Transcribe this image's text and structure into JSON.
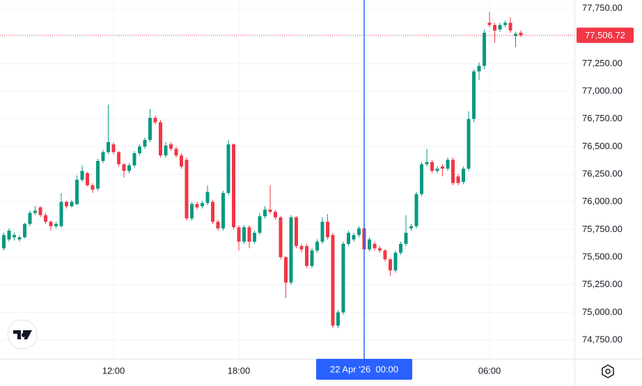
{
  "chart_data": {
    "type": "candlestick",
    "categories": [
      null,
      null,
      null,
      null,
      null,
      null,
      null,
      null,
      null,
      null,
      null,
      null,
      null,
      null,
      null,
      null,
      null,
      null,
      null,
      null,
      null,
      "12:00",
      null,
      null,
      null,
      null,
      null,
      null,
      null,
      null,
      null,
      null,
      null,
      null,
      null,
      null,
      null,
      null,
      null,
      null,
      null,
      null,
      null,
      null,
      null,
      "18:00",
      null,
      null,
      null,
      null,
      null,
      null,
      null,
      null,
      null,
      null,
      null,
      null,
      null,
      null,
      null,
      null,
      null,
      null,
      null,
      null,
      null,
      null,
      null,
      "22 Apr '26  00:00",
      null,
      null,
      null,
      null,
      null,
      null,
      null,
      null,
      null,
      null,
      null,
      null,
      null,
      null,
      null,
      null,
      null,
      null,
      null,
      null,
      null,
      null,
      null,
      "06:00",
      null,
      null,
      null,
      null,
      null,
      null
    ],
    "open": [
      75580,
      75660,
      75680,
      75660,
      75680,
      75800,
      75900,
      75950,
      75880,
      75820,
      75780,
      75780,
      76000,
      75960,
      75980,
      76200,
      76260,
      76150,
      76120,
      76370,
      76450,
      76520,
      76450,
      76340,
      76280,
      76330,
      76440,
      76500,
      76560,
      76760,
      76720,
      76420,
      76520,
      76480,
      76420,
      76380,
      75850,
      75980,
      75960,
      75990,
      76000,
      75820,
      75760,
      76080,
      76520,
      75770,
      75640,
      75770,
      75640,
      75720,
      75870,
      75930,
      75910,
      75860,
      75500,
      75270,
      75860,
      75600,
      75600,
      75420,
      75560,
      75640,
      75820,
      75700,
      74880,
      75000,
      75620,
      75660,
      75700,
      75760,
      75570,
      75620,
      75580,
      75560,
      75480,
      75380,
      75540,
      75620,
      75760,
      75780,
      76070,
      76340,
      76360,
      76280,
      76320,
      76300,
      76380,
      76230,
      76180,
      76300,
      76750,
      77180,
      77230,
      77620,
      77600,
      77560,
      77600,
      77620,
      77500,
      77530
    ],
    "high": [
      75720,
      75760,
      75720,
      75700,
      75810,
      75920,
      75960,
      75960,
      75900,
      75830,
      75820,
      76080,
      76010,
      76020,
      76240,
      76330,
      76270,
      76170,
      76390,
      76470,
      76880,
      76540,
      76460,
      76350,
      76350,
      76460,
      76520,
      76580,
      76840,
      76780,
      76740,
      76540,
      76540,
      76500,
      76440,
      76400,
      76000,
      76000,
      76010,
      76150,
      76020,
      75840,
      76100,
      76560,
      76530,
      75790,
      75790,
      75790,
      75740,
      75900,
      75960,
      76150,
      75930,
      75870,
      75510,
      75880,
      75870,
      75620,
      75620,
      75580,
      75660,
      75860,
      75890,
      75720,
      75020,
      75640,
      75740,
      75720,
      75780,
      75770,
      75680,
      75640,
      75600,
      75570,
      75490,
      75560,
      75640,
      75880,
      75800,
      76090,
      76360,
      76480,
      76380,
      76320,
      76340,
      76400,
      76400,
      76250,
      76320,
      76820,
      77200,
      77260,
      77560,
      77720,
      77620,
      77620,
      77640,
      77670,
      77540,
      77550
    ],
    "low": [
      75560,
      75640,
      75650,
      75640,
      75670,
      75780,
      75880,
      75860,
      75800,
      75740,
      75760,
      75770,
      75940,
      75950,
      75970,
      76180,
      76140,
      76080,
      76100,
      76350,
      76430,
      76430,
      76320,
      76220,
      76260,
      76310,
      76420,
      76480,
      76540,
      76700,
      76400,
      76400,
      76460,
      76400,
      76300,
      75830,
      75830,
      75930,
      75940,
      75970,
      75800,
      75740,
      75740,
      76060,
      75750,
      75560,
      75620,
      75580,
      75620,
      75700,
      75850,
      75890,
      75840,
      75480,
      75130,
      75250,
      75580,
      75540,
      75400,
      75400,
      75540,
      75620,
      75660,
      74860,
      74860,
      74980,
      75600,
      75640,
      75680,
      75550,
      75550,
      75560,
      75540,
      75460,
      75330,
      75360,
      75520,
      75600,
      75740,
      75760,
      76050,
      76320,
      76260,
      76260,
      76230,
      76280,
      76150,
      76150,
      76160,
      76280,
      76720,
      77100,
      77200,
      77580,
      77440,
      77540,
      77580,
      77530,
      77400,
      77490
    ],
    "close": [
      75700,
      75740,
      75700,
      75680,
      75800,
      75900,
      75920,
      75880,
      75820,
      75780,
      75800,
      76000,
      75960,
      76000,
      76200,
      76280,
      76150,
      76110,
      76370,
      76450,
      76540,
      76450,
      76340,
      76280,
      76330,
      76440,
      76500,
      76560,
      76760,
      76720,
      76420,
      76510,
      76480,
      76420,
      76320,
      75850,
      75980,
      75950,
      75990,
      76090,
      75820,
      75760,
      76080,
      76520,
      75770,
      75640,
      75770,
      75640,
      75720,
      75870,
      75930,
      75910,
      75860,
      75500,
      75270,
      75860,
      75600,
      75570,
      75420,
      75560,
      75640,
      75820,
      75680,
      74880,
      75000,
      75620,
      75720,
      75700,
      75760,
      75570,
      75660,
      75580,
      75560,
      75480,
      75380,
      75540,
      75620,
      75720,
      75780,
      76070,
      76340,
      76360,
      76280,
      76300,
      76300,
      76380,
      76170,
      76170,
      76300,
      76750,
      77180,
      77230,
      77530,
      77600,
      77550,
      77600,
      77620,
      77550,
      77520,
      77506.72
    ],
    "up_color": "#089981",
    "down_color": "#f23645",
    "ylim": [
      74580,
      77826
    ],
    "yticks": [
      {
        "value": 74750,
        "label": "74,750.00"
      },
      {
        "value": 75000,
        "label": "75,000.00"
      },
      {
        "value": 75250,
        "label": "75,250.00"
      },
      {
        "value": 75500,
        "label": "75,500.00"
      },
      {
        "value": 75750,
        "label": "75,750.00"
      },
      {
        "value": 76000,
        "label": "76,000.00"
      },
      {
        "value": 76250,
        "label": "76,250.00"
      },
      {
        "value": 76500,
        "label": "76,500.00"
      },
      {
        "value": 76750,
        "label": "76,750.00"
      },
      {
        "value": 77000,
        "label": "77,000.00"
      },
      {
        "value": 77250,
        "label": "77,250.00"
      },
      {
        "value": 77500,
        "label": "77,500.00"
      },
      {
        "value": 77750,
        "label": "77,750.00"
      }
    ],
    "grid": true,
    "last_price": {
      "value": 77506.72,
      "label": "77,506.72"
    },
    "crosshair_index": 69,
    "crosshair_color": "#2962ff"
  }
}
